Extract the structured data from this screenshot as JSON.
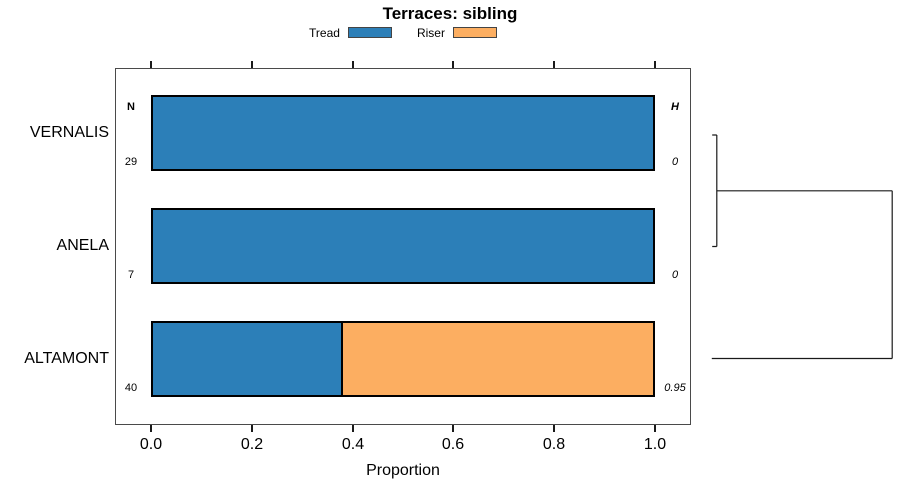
{
  "title": "Terraces: sibling",
  "legend": {
    "items": [
      {
        "label": "Tread",
        "color": "#2C7FB8"
      },
      {
        "label": "Riser",
        "color": "#FCAE61"
      }
    ]
  },
  "annotations": {
    "n_header": "N",
    "h_header": "H"
  },
  "rows": [
    {
      "label": "VERNALIS",
      "n": "29",
      "h": "0",
      "tread": 1,
      "riser": 0
    },
    {
      "label": "ANELA",
      "n": "7",
      "h": "0",
      "tread": 1,
      "riser": 0
    },
    {
      "label": "ALTAMONT",
      "n": "40",
      "h": "0.95",
      "tread": 0.375,
      "riser": 0.625
    }
  ],
  "axis": {
    "xlabel": "Proportion",
    "tick_labels": [
      "0.0",
      "0.2",
      "0.4",
      "0.6",
      "0.8",
      "1.0"
    ]
  },
  "chart_data": {
    "type": "bar",
    "orientation": "horizontal",
    "stacked": true,
    "title": "Terraces: sibling",
    "categories": [
      "VERNALIS",
      "ANELA",
      "ALTAMONT"
    ],
    "series": [
      {
        "name": "Tread",
        "values": [
          1.0,
          1.0,
          0.375
        ],
        "color": "#2C7FB8"
      },
      {
        "name": "Riser",
        "values": [
          0.0,
          0.0,
          0.625
        ],
        "color": "#FCAE61"
      }
    ],
    "sample_sizes_N": [
      29,
      7,
      40
    ],
    "entropy_H": [
      0,
      0,
      0.95
    ],
    "xlabel": "Proportion",
    "xlim": [
      0,
      1
    ],
    "xticks": [
      0.0,
      0.2,
      0.4,
      0.6,
      0.8,
      1.0
    ],
    "legend_position": "top",
    "grid": false,
    "right_dendrogram": {
      "orientation": "leaves-left",
      "merges": [
        {
          "members": [
            "VERNALIS",
            "ANELA"
          ],
          "relative_height": 0.02
        },
        {
          "members": [
            "VERNALIS+ANELA",
            "ALTAMONT"
          ],
          "relative_height": 1.0
        }
      ]
    }
  }
}
